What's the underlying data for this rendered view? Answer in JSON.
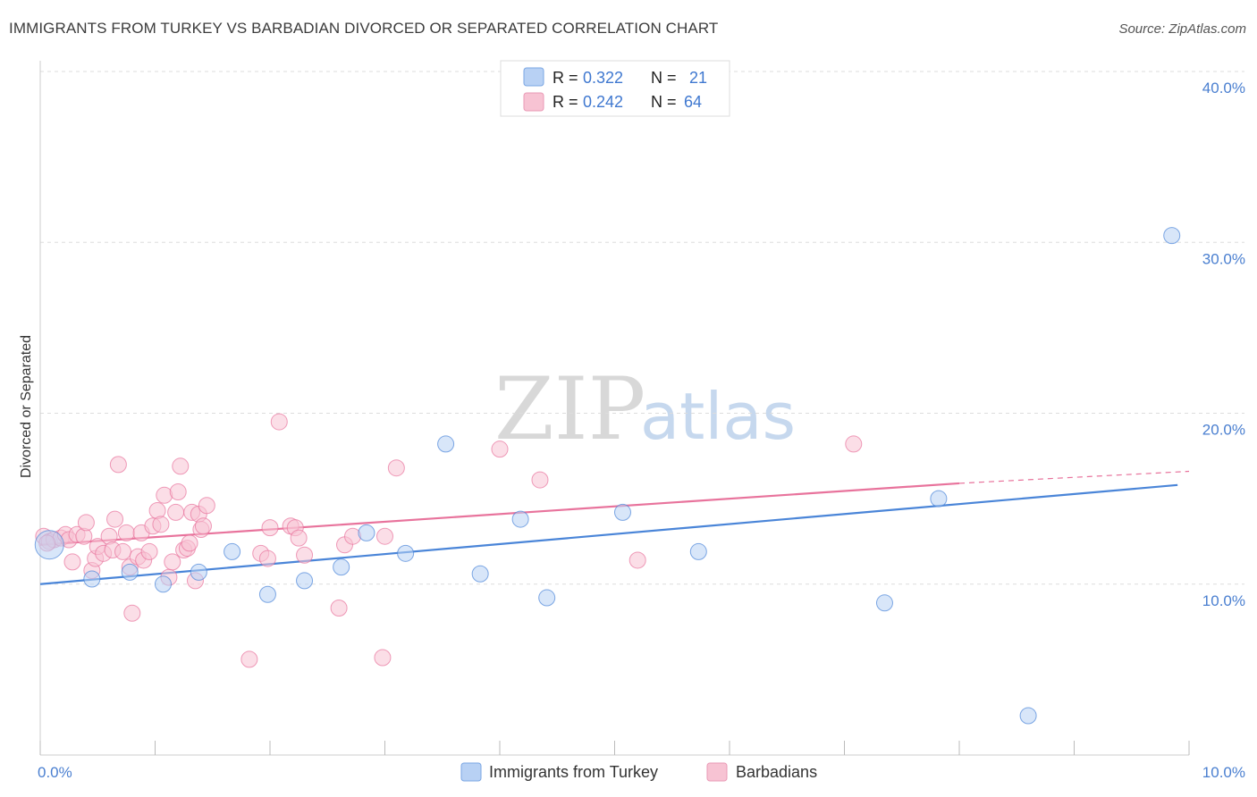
{
  "header": {
    "title": "IMMIGRANTS FROM TURKEY VS BARBADIAN DIVORCED OR SEPARATED CORRELATION CHART",
    "source": "Source: ZipAtlas.com"
  },
  "watermark": {
    "zip": "ZIP",
    "atlas": "atlas"
  },
  "colors": {
    "turkey": "#4a85d8",
    "turkey_fill": "#b8d1f4",
    "barbadian": "#e8739c",
    "barbadian_fill": "#f7c3d3",
    "axis_text": "#4a7fd0",
    "grid": "#dddddd"
  },
  "legend": {
    "rows": [
      {
        "r_label": "R =",
        "r_value": "0.322",
        "n_label": "N =",
        "n_value": "21"
      },
      {
        "r_label": "R =",
        "r_value": "0.242",
        "n_label": "N =",
        "n_value": "64"
      }
    ]
  },
  "chart_data": {
    "type": "scatter",
    "xlabel": "",
    "ylabel": "Divorced or Separated",
    "xlim": [
      0,
      10
    ],
    "ylim": [
      0,
      40
    ],
    "x_tick_labels": [
      "0.0%",
      "10.0%"
    ],
    "y_tick_labels": [
      "10.0%",
      "20.0%",
      "30.0%",
      "40.0%"
    ],
    "y_ticks": [
      10,
      20,
      30,
      40
    ],
    "grid": true,
    "legend_position": "bottom",
    "series": [
      {
        "name": "Immigrants from Turkey",
        "color": "#4a85d8",
        "r": 0.322,
        "n": 21,
        "points": [
          [
            0.08,
            12.3,
            "large"
          ],
          [
            0.45,
            10.3
          ],
          [
            0.78,
            10.7
          ],
          [
            1.07,
            10.0
          ],
          [
            1.38,
            10.7
          ],
          [
            1.67,
            11.9
          ],
          [
            1.98,
            9.4
          ],
          [
            2.3,
            10.2
          ],
          [
            2.62,
            11.0
          ],
          [
            2.84,
            13.0
          ],
          [
            3.18,
            11.8
          ],
          [
            3.53,
            18.2
          ],
          [
            3.83,
            10.6
          ],
          [
            4.18,
            13.8
          ],
          [
            4.41,
            9.2
          ],
          [
            5.07,
            14.2
          ],
          [
            5.73,
            11.9
          ],
          [
            7.35,
            8.9
          ],
          [
            7.82,
            15.0
          ],
          [
            8.6,
            2.3
          ],
          [
            9.85,
            30.4
          ]
        ],
        "trend": {
          "x0": 0,
          "y0": 10.0,
          "x1": 9.9,
          "y1": 15.8
        }
      },
      {
        "name": "Barbadians",
        "color": "#e8739c",
        "r": 0.242,
        "n": 64,
        "points": [
          [
            0.03,
            12.8
          ],
          [
            0.08,
            12.5
          ],
          [
            0.12,
            12.6
          ],
          [
            0.18,
            12.7
          ],
          [
            0.22,
            12.9
          ],
          [
            0.25,
            12.6
          ],
          [
            0.28,
            11.3
          ],
          [
            0.32,
            12.9
          ],
          [
            0.38,
            12.8
          ],
          [
            0.4,
            13.6
          ],
          [
            0.45,
            10.8
          ],
          [
            0.48,
            11.5
          ],
          [
            0.5,
            12.2
          ],
          [
            0.55,
            11.8
          ],
          [
            0.6,
            12.8
          ],
          [
            0.63,
            12.0
          ],
          [
            0.65,
            13.8
          ],
          [
            0.68,
            17.0
          ],
          [
            0.72,
            11.9
          ],
          [
            0.75,
            13.0
          ],
          [
            0.78,
            11.0
          ],
          [
            0.8,
            8.3
          ],
          [
            0.85,
            11.6
          ],
          [
            0.88,
            13.0
          ],
          [
            0.9,
            11.4
          ],
          [
            0.95,
            11.9
          ],
          [
            0.98,
            13.4
          ],
          [
            1.02,
            14.3
          ],
          [
            1.05,
            13.5
          ],
          [
            1.08,
            15.2
          ],
          [
            1.12,
            10.4
          ],
          [
            1.15,
            11.3
          ],
          [
            1.18,
            14.2
          ],
          [
            1.2,
            15.4
          ],
          [
            1.22,
            16.9
          ],
          [
            1.25,
            12.0
          ],
          [
            1.28,
            12.1
          ],
          [
            1.3,
            12.4
          ],
          [
            1.32,
            14.2
          ],
          [
            1.35,
            10.2
          ],
          [
            1.38,
            14.1
          ],
          [
            1.4,
            13.2
          ],
          [
            1.42,
            13.4
          ],
          [
            1.45,
            14.6
          ],
          [
            1.82,
            5.6
          ],
          [
            1.92,
            11.8
          ],
          [
            1.98,
            11.5
          ],
          [
            2.0,
            13.3
          ],
          [
            2.08,
            19.5
          ],
          [
            2.18,
            13.4
          ],
          [
            2.22,
            13.3
          ],
          [
            2.25,
            12.7
          ],
          [
            2.3,
            11.7
          ],
          [
            2.6,
            8.6
          ],
          [
            2.65,
            12.3
          ],
          [
            2.72,
            12.8
          ],
          [
            2.98,
            5.7
          ],
          [
            3.0,
            12.8
          ],
          [
            3.1,
            16.8
          ],
          [
            4.0,
            17.9
          ],
          [
            4.35,
            16.1
          ],
          [
            5.2,
            11.4
          ],
          [
            7.08,
            18.2
          ],
          [
            0.06,
            12.4
          ]
        ],
        "trend": {
          "x0": 0,
          "y0": 12.3,
          "x1": 8.0,
          "y1": 15.9,
          "dash_to_x": 10.0,
          "dash_to_y": 16.6
        }
      }
    ]
  },
  "bottom_legend": {
    "items": [
      {
        "label": "Immigrants from Turkey"
      },
      {
        "label": "Barbadians"
      }
    ]
  }
}
